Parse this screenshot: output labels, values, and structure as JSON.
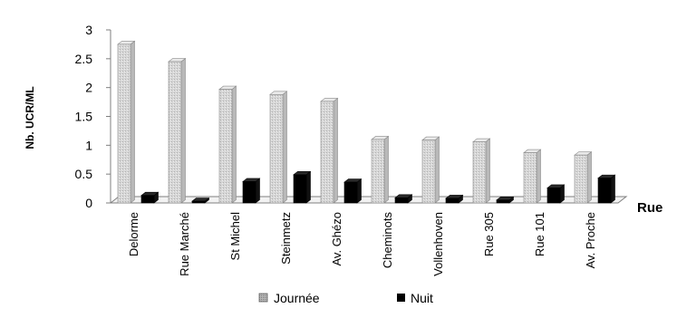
{
  "chart_data": {
    "type": "bar",
    "title": "",
    "ylabel": "Nb. UCR/ML",
    "xlabel": "Rue",
    "ylim": [
      0,
      3
    ],
    "yticks": [
      0,
      0.5,
      1,
      1.5,
      2,
      2.5,
      3
    ],
    "ytick_labels": [
      "0",
      "0.5",
      "1",
      "1.5",
      "2",
      "2.5",
      "3"
    ],
    "categories": [
      "Delorme",
      "Rue Marché",
      "St Michel",
      "Steinmetz",
      "Av. Ghézo",
      "Cheminots",
      "Vollenhoven",
      "Rue 305",
      "Rue 101",
      "Av. Proche"
    ],
    "series": [
      {
        "name": "Journée",
        "values": [
          2.75,
          2.45,
          1.97,
          1.88,
          1.76,
          1.1,
          1.09,
          1.06,
          0.87,
          0.83
        ]
      },
      {
        "name": "Nuit",
        "values": [
          0.13,
          0.03,
          0.37,
          0.49,
          0.36,
          0.09,
          0.08,
          0.05,
          0.26,
          0.43
        ]
      }
    ],
    "grid": false,
    "legend_position": "bottom",
    "colors": {
      "journee_fill": "#d6d6d6",
      "journee_stroke": "#8a8a8a",
      "nuit_fill": "#000000",
      "axis": "#7f7f7f",
      "text": "#000000"
    }
  }
}
